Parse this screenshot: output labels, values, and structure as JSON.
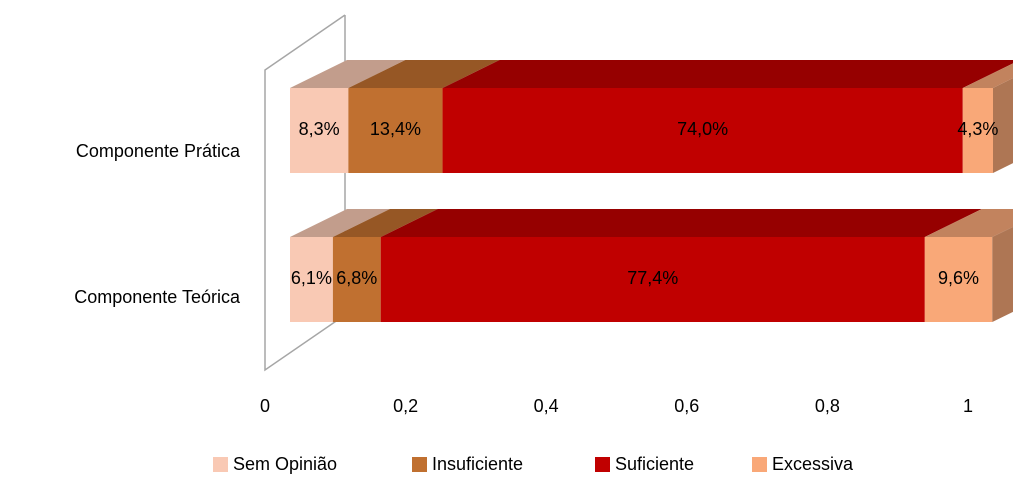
{
  "chart_data": {
    "type": "bar3d_stacked_horizontal",
    "categories": [
      "Componente Prática",
      "Componente Teórica"
    ],
    "series": [
      {
        "name": "Sem Opinião",
        "color": "#f9c9b4",
        "values": [
          0.083,
          0.061
        ],
        "value_labels": [
          "8,3%",
          "6,1%"
        ]
      },
      {
        "name": "Insuficiente",
        "color": "#c07030",
        "values": [
          0.134,
          0.068
        ],
        "value_labels": [
          "13,4%",
          "6,8%"
        ]
      },
      {
        "name": "Suficiente",
        "color": "#c00000",
        "values": [
          0.74,
          0.774
        ],
        "value_labels": [
          "74,0%",
          "77,4%"
        ]
      },
      {
        "name": "Excessiva",
        "color": "#f9a878",
        "values": [
          0.043,
          0.096
        ],
        "value_labels": [
          "4,3%",
          "9,6%"
        ]
      }
    ],
    "xlim": [
      0,
      1
    ],
    "xticks": [
      0,
      {
        "value": 0.2,
        "label": "0,2"
      },
      {
        "value": 0.4,
        "label": "0,4"
      },
      {
        "value": 0.6,
        "label": "0,6"
      },
      {
        "value": 0.8,
        "label": "0,8"
      },
      1
    ],
    "legend": "bottom"
  }
}
